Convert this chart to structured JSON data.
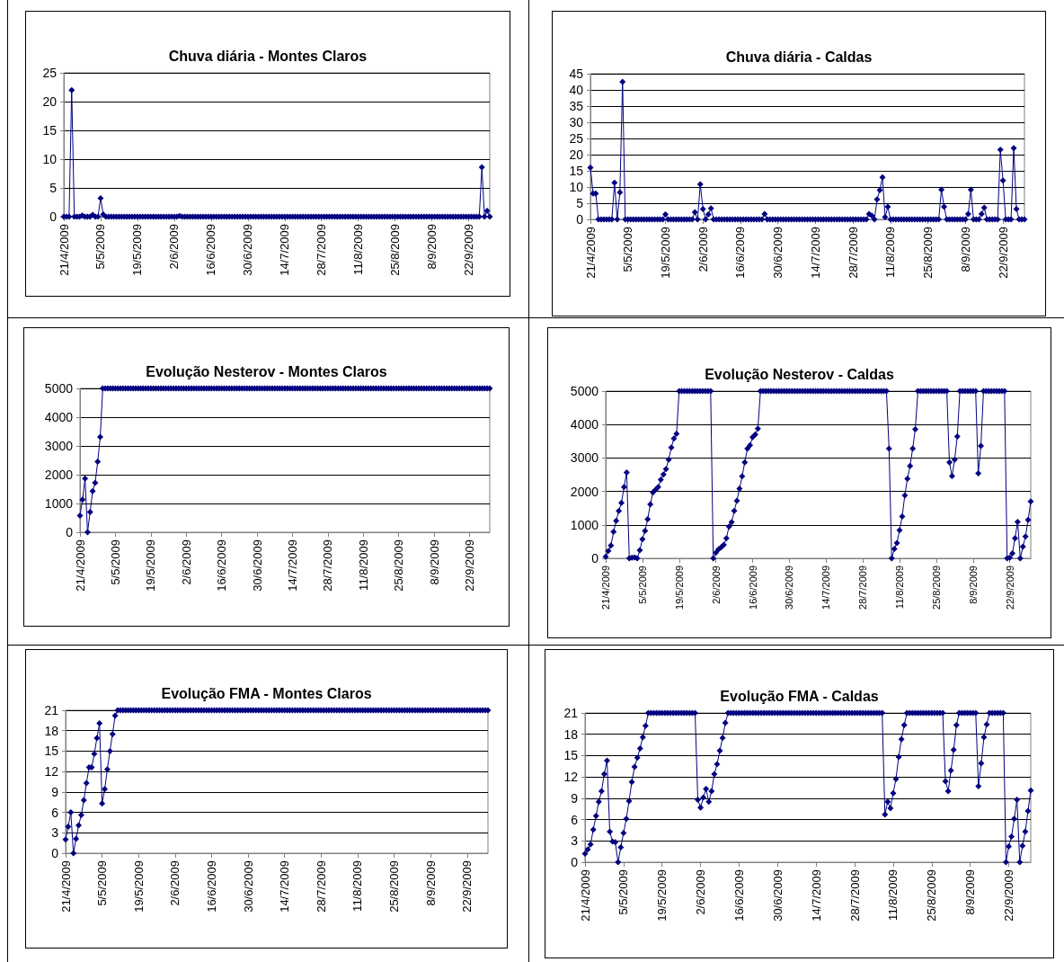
{
  "chart_data": [
    {
      "type": "line",
      "title": "Chuva diária - Montes Claros",
      "grid": "y",
      "marker": "diamond",
      "ylim": [
        0,
        25
      ],
      "yticks": [
        0,
        5,
        10,
        15,
        20,
        25
      ],
      "categories": [
        "21/4/2009",
        null,
        null,
        null,
        null,
        null,
        null,
        null,
        null,
        null,
        null,
        null,
        null,
        null,
        "5/5/2009",
        null,
        null,
        null,
        null,
        null,
        null,
        null,
        null,
        null,
        null,
        null,
        null,
        null,
        "19/5/2009",
        null,
        null,
        null,
        null,
        null,
        null,
        null,
        null,
        null,
        null,
        null,
        null,
        null,
        "2/6/2009",
        null,
        null,
        null,
        null,
        null,
        null,
        null,
        null,
        null,
        null,
        null,
        null,
        null,
        "16/6/2009",
        null,
        null,
        null,
        null,
        null,
        null,
        null,
        null,
        null,
        null,
        null,
        null,
        null,
        "30/6/2009",
        null,
        null,
        null,
        null,
        null,
        null,
        null,
        null,
        null,
        null,
        null,
        null,
        null,
        "14/7/2009",
        null,
        null,
        null,
        null,
        null,
        null,
        null,
        null,
        null,
        null,
        null,
        null,
        null,
        "28/7/2009",
        null,
        null,
        null,
        null,
        null,
        null,
        null,
        null,
        null,
        null,
        null,
        null,
        null,
        "11/8/2009",
        null,
        null,
        null,
        null,
        null,
        null,
        null,
        null,
        null,
        null,
        null,
        null,
        null,
        "25/8/2009",
        null,
        null,
        null,
        null,
        null,
        null,
        null,
        null,
        null,
        null,
        null,
        null,
        null,
        "8/9/2009",
        null,
        null,
        null,
        null,
        null,
        null,
        null,
        null,
        null,
        null,
        null,
        null,
        null,
        "22/9/2009",
        null,
        null,
        null,
        null,
        null,
        null,
        null,
        null
      ],
      "series": [
        {
          "color": "#000080",
          "values": [
            0,
            0,
            0,
            22,
            0,
            0,
            0,
            0.2,
            0,
            0,
            0,
            0.3,
            0,
            0,
            3.2,
            0.4,
            0,
            0,
            0,
            0,
            0,
            0,
            0,
            0,
            0,
            0,
            0,
            0,
            0,
            0,
            0,
            0,
            0,
            0,
            0,
            0,
            0,
            0,
            0,
            0,
            0,
            0,
            0,
            0,
            0.1,
            0,
            0,
            0,
            0,
            0,
            0,
            0,
            0,
            0,
            0,
            0,
            0,
            0,
            0,
            0,
            0,
            0,
            0,
            0,
            0,
            0,
            0,
            0,
            0,
            0,
            0,
            0,
            0,
            0,
            0,
            0,
            0,
            0,
            0,
            0,
            0,
            0,
            0,
            0,
            0,
            0,
            0,
            0,
            0,
            0,
            0,
            0,
            0,
            0,
            0,
            0,
            0,
            0,
            0,
            0,
            0,
            0,
            0,
            0,
            0,
            0,
            0,
            0,
            0,
            0,
            0,
            0,
            0,
            0,
            0,
            0,
            0,
            0,
            0,
            0,
            0,
            0,
            0,
            0,
            0,
            0,
            0,
            0,
            0,
            0,
            0,
            0,
            0,
            0,
            0,
            0,
            0,
            0,
            0,
            0,
            0,
            0,
            0,
            0,
            0,
            0,
            0,
            0,
            0,
            0,
            0,
            0,
            0,
            0,
            0,
            0,
            0,
            0,
            0,
            8.6,
            0,
            1,
            0
          ]
        }
      ]
    },
    {
      "type": "line",
      "title": "Chuva diária - Caldas",
      "grid": "y",
      "marker": "diamond",
      "ylim": [
        0,
        45
      ],
      "yticks": [
        0,
        5,
        10,
        15,
        20,
        25,
        30,
        35,
        40,
        45
      ],
      "categories": [
        "21/4/2009",
        null,
        null,
        null,
        null,
        null,
        null,
        null,
        null,
        null,
        null,
        null,
        null,
        null,
        "5/5/2009",
        null,
        null,
        null,
        null,
        null,
        null,
        null,
        null,
        null,
        null,
        null,
        null,
        null,
        "19/5/2009",
        null,
        null,
        null,
        null,
        null,
        null,
        null,
        null,
        null,
        null,
        null,
        null,
        null,
        "2/6/2009",
        null,
        null,
        null,
        null,
        null,
        null,
        null,
        null,
        null,
        null,
        null,
        null,
        null,
        "16/6/2009",
        null,
        null,
        null,
        null,
        null,
        null,
        null,
        null,
        null,
        null,
        null,
        null,
        null,
        "30/6/2009",
        null,
        null,
        null,
        null,
        null,
        null,
        null,
        null,
        null,
        null,
        null,
        null,
        null,
        "14/7/2009",
        null,
        null,
        null,
        null,
        null,
        null,
        null,
        null,
        null,
        null,
        null,
        null,
        null,
        "28/7/2009",
        null,
        null,
        null,
        null,
        null,
        null,
        null,
        null,
        null,
        null,
        null,
        null,
        null,
        "11/8/2009",
        null,
        null,
        null,
        null,
        null,
        null,
        null,
        null,
        null,
        null,
        null,
        null,
        null,
        "25/8/2009",
        null,
        null,
        null,
        null,
        null,
        null,
        null,
        null,
        null,
        null,
        null,
        null,
        null,
        "8/9/2009",
        null,
        null,
        null,
        null,
        null,
        null,
        null,
        null,
        null,
        null,
        null,
        null,
        null,
        "22/9/2009",
        null,
        null,
        null,
        null,
        null,
        null,
        null,
        null
      ],
      "series": [
        {
          "color": "#000080",
          "values": [
            16,
            8,
            8,
            0,
            0,
            0,
            0,
            0,
            0,
            11.3,
            0,
            8.3,
            42.5,
            0,
            0,
            0,
            0,
            0,
            0,
            0,
            0,
            0,
            0,
            0,
            0,
            0,
            0,
            0,
            1.5,
            0,
            0,
            0,
            0,
            0,
            0,
            0,
            0,
            0,
            0,
            2.2,
            0,
            10.8,
            3.2,
            0,
            1.5,
            3.4,
            0,
            0,
            0,
            0,
            0,
            0,
            0,
            0,
            0,
            0,
            0,
            0,
            0,
            0,
            0,
            0,
            0,
            0,
            0,
            1.7,
            0,
            0,
            0,
            0,
            0,
            0,
            0,
            0,
            0,
            0,
            0,
            0,
            0,
            0,
            0,
            0,
            0,
            0,
            0,
            0,
            0,
            0,
            0,
            0,
            0,
            0,
            0,
            0,
            0,
            0,
            0,
            0,
            0,
            0,
            0,
            0,
            0,
            0,
            1.7,
            1.2,
            0,
            6.2,
            9,
            13,
            0.7,
            3.9,
            0,
            0,
            0,
            0,
            0,
            0,
            0,
            0,
            0,
            0,
            0,
            0,
            0,
            0,
            0,
            0,
            0,
            0,
            0,
            9.2,
            3.9,
            0,
            0,
            0,
            0,
            0,
            0,
            0,
            0,
            1.7,
            9.2,
            0,
            0,
            0,
            1.7,
            3.6,
            0,
            0,
            0,
            0,
            0,
            21.5,
            12,
            0,
            0,
            0,
            22,
            3.2,
            0,
            0,
            0
          ]
        }
      ]
    },
    {
      "type": "line",
      "title": "Evolução Nesterov - Montes Claros",
      "grid": "y",
      "marker": "diamond",
      "ylim": [
        0,
        5000
      ],
      "yticks": [
        0,
        1000,
        2000,
        3000,
        4000,
        5000
      ],
      "categories": [
        "21/4/2009",
        null,
        null,
        null,
        null,
        null,
        null,
        null,
        null,
        null,
        null,
        null,
        null,
        null,
        "5/5/2009",
        null,
        null,
        null,
        null,
        null,
        null,
        null,
        null,
        null,
        null,
        null,
        null,
        null,
        "19/5/2009",
        null,
        null,
        null,
        null,
        null,
        null,
        null,
        null,
        null,
        null,
        null,
        null,
        null,
        "2/6/2009",
        null,
        null,
        null,
        null,
        null,
        null,
        null,
        null,
        null,
        null,
        null,
        null,
        null,
        "16/6/2009",
        null,
        null,
        null,
        null,
        null,
        null,
        null,
        null,
        null,
        null,
        null,
        null,
        null,
        "30/6/2009",
        null,
        null,
        null,
        null,
        null,
        null,
        null,
        null,
        null,
        null,
        null,
        null,
        null,
        "14/7/2009",
        null,
        null,
        null,
        null,
        null,
        null,
        null,
        null,
        null,
        null,
        null,
        null,
        null,
        "28/7/2009",
        null,
        null,
        null,
        null,
        null,
        null,
        null,
        null,
        null,
        null,
        null,
        null,
        null,
        "11/8/2009",
        null,
        null,
        null,
        null,
        null,
        null,
        null,
        null,
        null,
        null,
        null,
        null,
        null,
        "25/8/2009",
        null,
        null,
        null,
        null,
        null,
        null,
        null,
        null,
        null,
        null,
        null,
        null,
        null,
        "8/9/2009",
        null,
        null,
        null,
        null,
        null,
        null,
        null,
        null,
        null,
        null,
        null,
        null,
        null,
        "22/9/2009",
        null,
        null,
        null,
        null,
        null,
        null,
        null,
        null
      ],
      "series": [
        {
          "color": "#000080",
          "values": [
            580,
            1130,
            1870,
            0,
            700,
            1430,
            1720,
            2450,
            3310,
            5000,
            5000,
            5000,
            5000,
            5000,
            5000,
            5000,
            5000,
            5000,
            5000,
            5000,
            5000,
            5000,
            5000,
            5000,
            5000,
            5000,
            5000,
            5000,
            5000,
            5000,
            5000,
            5000,
            5000,
            5000,
            5000,
            5000,
            5000,
            5000,
            5000,
            5000,
            5000,
            5000,
            5000,
            5000,
            5000,
            5000,
            5000,
            5000,
            5000,
            5000,
            5000,
            5000,
            5000,
            5000,
            5000,
            5000,
            5000,
            5000,
            5000,
            5000,
            5000,
            5000,
            5000,
            5000,
            5000,
            5000,
            5000,
            5000,
            5000,
            5000,
            5000,
            5000,
            5000,
            5000,
            5000,
            5000,
            5000,
            5000,
            5000,
            5000,
            5000,
            5000,
            5000,
            5000,
            5000,
            5000,
            5000,
            5000,
            5000,
            5000,
            5000,
            5000,
            5000,
            5000,
            5000,
            5000,
            5000,
            5000,
            5000,
            5000,
            5000,
            5000,
            5000,
            5000,
            5000,
            5000,
            5000,
            5000,
            5000,
            5000,
            5000,
            5000,
            5000,
            5000,
            5000,
            5000,
            5000,
            5000,
            5000,
            5000,
            5000,
            5000,
            5000,
            5000,
            5000,
            5000,
            5000,
            5000,
            5000,
            5000,
            5000,
            5000,
            5000,
            5000,
            5000,
            5000,
            5000,
            5000,
            5000,
            5000,
            5000,
            5000,
            5000,
            5000,
            5000,
            5000,
            5000,
            5000,
            5000,
            5000,
            5000,
            5000,
            5000,
            5000,
            5000,
            5000,
            5000,
            5000,
            5000,
            5000,
            5000,
            5000,
            5000
          ]
        }
      ]
    },
    {
      "type": "line",
      "title": "Evolução Nesterov - Caldas",
      "grid": "y",
      "marker": "diamond",
      "ylim": [
        0,
        5000
      ],
      "yticks": [
        0,
        1000,
        2000,
        3000,
        4000,
        5000
      ],
      "categories": [
        "21/4/2009",
        null,
        null,
        null,
        null,
        null,
        null,
        null,
        null,
        null,
        null,
        null,
        null,
        null,
        "5/5/2009",
        null,
        null,
        null,
        null,
        null,
        null,
        null,
        null,
        null,
        null,
        null,
        null,
        null,
        "19/5/2009",
        null,
        null,
        null,
        null,
        null,
        null,
        null,
        null,
        null,
        null,
        null,
        null,
        null,
        "2/6/2009",
        null,
        null,
        null,
        null,
        null,
        null,
        null,
        null,
        null,
        null,
        null,
        null,
        null,
        "16/6/2009",
        null,
        null,
        null,
        null,
        null,
        null,
        null,
        null,
        null,
        null,
        null,
        null,
        null,
        "30/6/2009",
        null,
        null,
        null,
        null,
        null,
        null,
        null,
        null,
        null,
        null,
        null,
        null,
        null,
        "14/7/2009",
        null,
        null,
        null,
        null,
        null,
        null,
        null,
        null,
        null,
        null,
        null,
        null,
        null,
        "28/7/2009",
        null,
        null,
        null,
        null,
        null,
        null,
        null,
        null,
        null,
        null,
        null,
        null,
        null,
        "11/8/2009",
        null,
        null,
        null,
        null,
        null,
        null,
        null,
        null,
        null,
        null,
        null,
        null,
        null,
        "25/8/2009",
        null,
        null,
        null,
        null,
        null,
        null,
        null,
        null,
        null,
        null,
        null,
        null,
        null,
        "8/9/2009",
        null,
        null,
        null,
        null,
        null,
        null,
        null,
        null,
        null,
        null,
        null,
        null,
        null,
        "22/9/2009",
        null,
        null,
        null,
        null,
        null,
        null,
        null,
        null
      ],
      "series": [
        {
          "color": "#000080",
          "values": [
            50,
            220,
            380,
            790,
            1120,
            1420,
            1660,
            2130,
            2570,
            0,
            20,
            30,
            0,
            240,
            570,
            820,
            1170,
            1610,
            1970,
            2050,
            2130,
            2350,
            2510,
            2670,
            2950,
            3310,
            3580,
            3720,
            5000,
            5000,
            5000,
            5000,
            5000,
            5000,
            5000,
            5000,
            5000,
            5000,
            5000,
            5000,
            5000,
            0,
            170,
            270,
            330,
            400,
            600,
            950,
            1080,
            1420,
            1720,
            2080,
            2450,
            2870,
            3280,
            3380,
            3620,
            3700,
            3880,
            5000,
            5000,
            5000,
            5000,
            5000,
            5000,
            5000,
            5000,
            5000,
            5000,
            5000,
            5000,
            5000,
            5000,
            5000,
            5000,
            5000,
            5000,
            5000,
            5000,
            5000,
            5000,
            5000,
            5000,
            5000,
            5000,
            5000,
            5000,
            5000,
            5000,
            5000,
            5000,
            5000,
            5000,
            5000,
            5000,
            5000,
            5000,
            5000,
            5000,
            5000,
            5000,
            5000,
            5000,
            5000,
            5000,
            5000,
            5000,
            5000,
            3280,
            0,
            280,
            460,
            840,
            1250,
            1880,
            2380,
            2760,
            3280,
            3860,
            5000,
            5000,
            5000,
            5000,
            5000,
            5000,
            5000,
            5000,
            5000,
            5000,
            5000,
            5000,
            2870,
            2460,
            2950,
            3640,
            5000,
            5000,
            5000,
            5000,
            5000,
            5000,
            5000,
            2540,
            3360,
            5000,
            5000,
            5000,
            5000,
            5000,
            5000,
            5000,
            5000,
            5000,
            0,
            20,
            150,
            600,
            1090,
            0,
            350,
            650,
            1150,
            1700
          ]
        }
      ]
    },
    {
      "type": "line",
      "title": "Evolução FMA - Montes Claros",
      "grid": "y",
      "marker": "diamond",
      "ylim": [
        0,
        21
      ],
      "yticks": [
        0,
        3,
        6,
        9,
        12,
        15,
        18,
        21
      ],
      "categories": [
        "21/4/2009",
        null,
        null,
        null,
        null,
        null,
        null,
        null,
        null,
        null,
        null,
        null,
        null,
        null,
        "5/5/2009",
        null,
        null,
        null,
        null,
        null,
        null,
        null,
        null,
        null,
        null,
        null,
        null,
        null,
        "19/5/2009",
        null,
        null,
        null,
        null,
        null,
        null,
        null,
        null,
        null,
        null,
        null,
        null,
        null,
        "2/6/2009",
        null,
        null,
        null,
        null,
        null,
        null,
        null,
        null,
        null,
        null,
        null,
        null,
        null,
        "16/6/2009",
        null,
        null,
        null,
        null,
        null,
        null,
        null,
        null,
        null,
        null,
        null,
        null,
        null,
        "30/6/2009",
        null,
        null,
        null,
        null,
        null,
        null,
        null,
        null,
        null,
        null,
        null,
        null,
        null,
        "14/7/2009",
        null,
        null,
        null,
        null,
        null,
        null,
        null,
        null,
        null,
        null,
        null,
        null,
        null,
        "28/7/2009",
        null,
        null,
        null,
        null,
        null,
        null,
        null,
        null,
        null,
        null,
        null,
        null,
        null,
        "11/8/2009",
        null,
        null,
        null,
        null,
        null,
        null,
        null,
        null,
        null,
        null,
        null,
        null,
        null,
        "25/8/2009",
        null,
        null,
        null,
        null,
        null,
        null,
        null,
        null,
        null,
        null,
        null,
        null,
        null,
        "8/9/2009",
        null,
        null,
        null,
        null,
        null,
        null,
        null,
        null,
        null,
        null,
        null,
        null,
        null,
        "22/9/2009",
        null,
        null,
        null,
        null,
        null,
        null,
        null,
        null
      ],
      "series": [
        {
          "color": "#000080",
          "values": [
            2,
            3.9,
            6,
            0,
            2.1,
            4.1,
            5.6,
            7.8,
            10.3,
            12.6,
            12.6,
            14.6,
            16.9,
            19.1,
            7.3,
            9.4,
            12.3,
            15,
            17.5,
            20.2,
            21,
            21,
            21,
            21,
            21,
            21,
            21,
            21,
            21,
            21,
            21,
            21,
            21,
            21,
            21,
            21,
            21,
            21,
            21,
            21,
            21,
            21,
            21,
            21,
            21,
            21,
            21,
            21,
            21,
            21,
            21,
            21,
            21,
            21,
            21,
            21,
            21,
            21,
            21,
            21,
            21,
            21,
            21,
            21,
            21,
            21,
            21,
            21,
            21,
            21,
            21,
            21,
            21,
            21,
            21,
            21,
            21,
            21,
            21,
            21,
            21,
            21,
            21,
            21,
            21,
            21,
            21,
            21,
            21,
            21,
            21,
            21,
            21,
            21,
            21,
            21,
            21,
            21,
            21,
            21,
            21,
            21,
            21,
            21,
            21,
            21,
            21,
            21,
            21,
            21,
            21,
            21,
            21,
            21,
            21,
            21,
            21,
            21,
            21,
            21,
            21,
            21,
            21,
            21,
            21,
            21,
            21,
            21,
            21,
            21,
            21,
            21,
            21,
            21,
            21,
            21,
            21,
            21,
            21,
            21,
            21,
            21,
            21,
            21,
            21,
            21,
            21,
            21,
            21,
            21,
            21,
            21,
            21,
            21,
            21,
            21,
            21,
            21,
            21,
            21,
            21,
            21,
            21
          ]
        }
      ]
    },
    {
      "type": "line",
      "title": "Evolução FMA - Caldas",
      "grid": "y",
      "marker": "diamond",
      "ylim": [
        0,
        21
      ],
      "yticks": [
        0,
        3,
        6,
        9,
        12,
        15,
        18,
        21
      ],
      "categories": [
        "21/4/2009",
        null,
        null,
        null,
        null,
        null,
        null,
        null,
        null,
        null,
        null,
        null,
        null,
        null,
        "5/5/2009",
        null,
        null,
        null,
        null,
        null,
        null,
        null,
        null,
        null,
        null,
        null,
        null,
        null,
        "19/5/2009",
        null,
        null,
        null,
        null,
        null,
        null,
        null,
        null,
        null,
        null,
        null,
        null,
        null,
        "2/6/2009",
        null,
        null,
        null,
        null,
        null,
        null,
        null,
        null,
        null,
        null,
        null,
        null,
        null,
        "16/6/2009",
        null,
        null,
        null,
        null,
        null,
        null,
        null,
        null,
        null,
        null,
        null,
        null,
        null,
        "30/6/2009",
        null,
        null,
        null,
        null,
        null,
        null,
        null,
        null,
        null,
        null,
        null,
        null,
        null,
        "14/7/2009",
        null,
        null,
        null,
        null,
        null,
        null,
        null,
        null,
        null,
        null,
        null,
        null,
        null,
        "28/7/2009",
        null,
        null,
        null,
        null,
        null,
        null,
        null,
        null,
        null,
        null,
        null,
        null,
        null,
        "11/8/2009",
        null,
        null,
        null,
        null,
        null,
        null,
        null,
        null,
        null,
        null,
        null,
        null,
        null,
        "25/8/2009",
        null,
        null,
        null,
        null,
        null,
        null,
        null,
        null,
        null,
        null,
        null,
        null,
        null,
        "8/9/2009",
        null,
        null,
        null,
        null,
        null,
        null,
        null,
        null,
        null,
        null,
        null,
        null,
        null,
        "22/9/2009",
        null,
        null,
        null,
        null,
        null,
        null,
        null,
        null
      ],
      "series": [
        {
          "color": "#000080",
          "values": [
            1.2,
            1.8,
            2.5,
            4.6,
            6.5,
            8.5,
            10,
            12.4,
            14.3,
            4.3,
            2.9,
            2.8,
            0,
            2.1,
            4.1,
            6.1,
            8.6,
            11.3,
            13.4,
            14.7,
            16,
            17.6,
            19.2,
            21,
            21,
            21,
            21,
            21,
            21,
            21,
            21,
            21,
            21,
            21,
            21,
            21,
            21,
            21,
            21,
            21,
            21,
            8.8,
            7.7,
            9.1,
            10.3,
            8.5,
            10,
            12.4,
            13.8,
            15.7,
            17.5,
            19.6,
            21,
            21,
            21,
            21,
            21,
            21,
            21,
            21,
            21,
            21,
            21,
            21,
            21,
            21,
            21,
            21,
            21,
            21,
            21,
            21,
            21,
            21,
            21,
            21,
            21,
            21,
            21,
            21,
            21,
            21,
            21,
            21,
            21,
            21,
            21,
            21,
            21,
            21,
            21,
            21,
            21,
            21,
            21,
            21,
            21,
            21,
            21,
            21,
            21,
            21,
            21,
            21,
            21,
            21,
            21,
            21,
            21,
            6.7,
            8.5,
            7.6,
            9.7,
            11.7,
            14.8,
            17.3,
            19.3,
            21,
            21,
            21,
            21,
            21,
            21,
            21,
            21,
            21,
            21,
            21,
            21,
            21,
            21,
            11.4,
            10,
            12.9,
            15.8,
            19.3,
            21,
            21,
            21,
            21,
            21,
            21,
            21,
            10.7,
            13.9,
            17.6,
            19.4,
            21,
            21,
            21,
            21,
            21,
            21,
            0,
            2.2,
            3.6,
            6.1,
            8.8,
            0,
            2.3,
            4.3,
            7.2,
            10.1
          ]
        }
      ]
    }
  ]
}
